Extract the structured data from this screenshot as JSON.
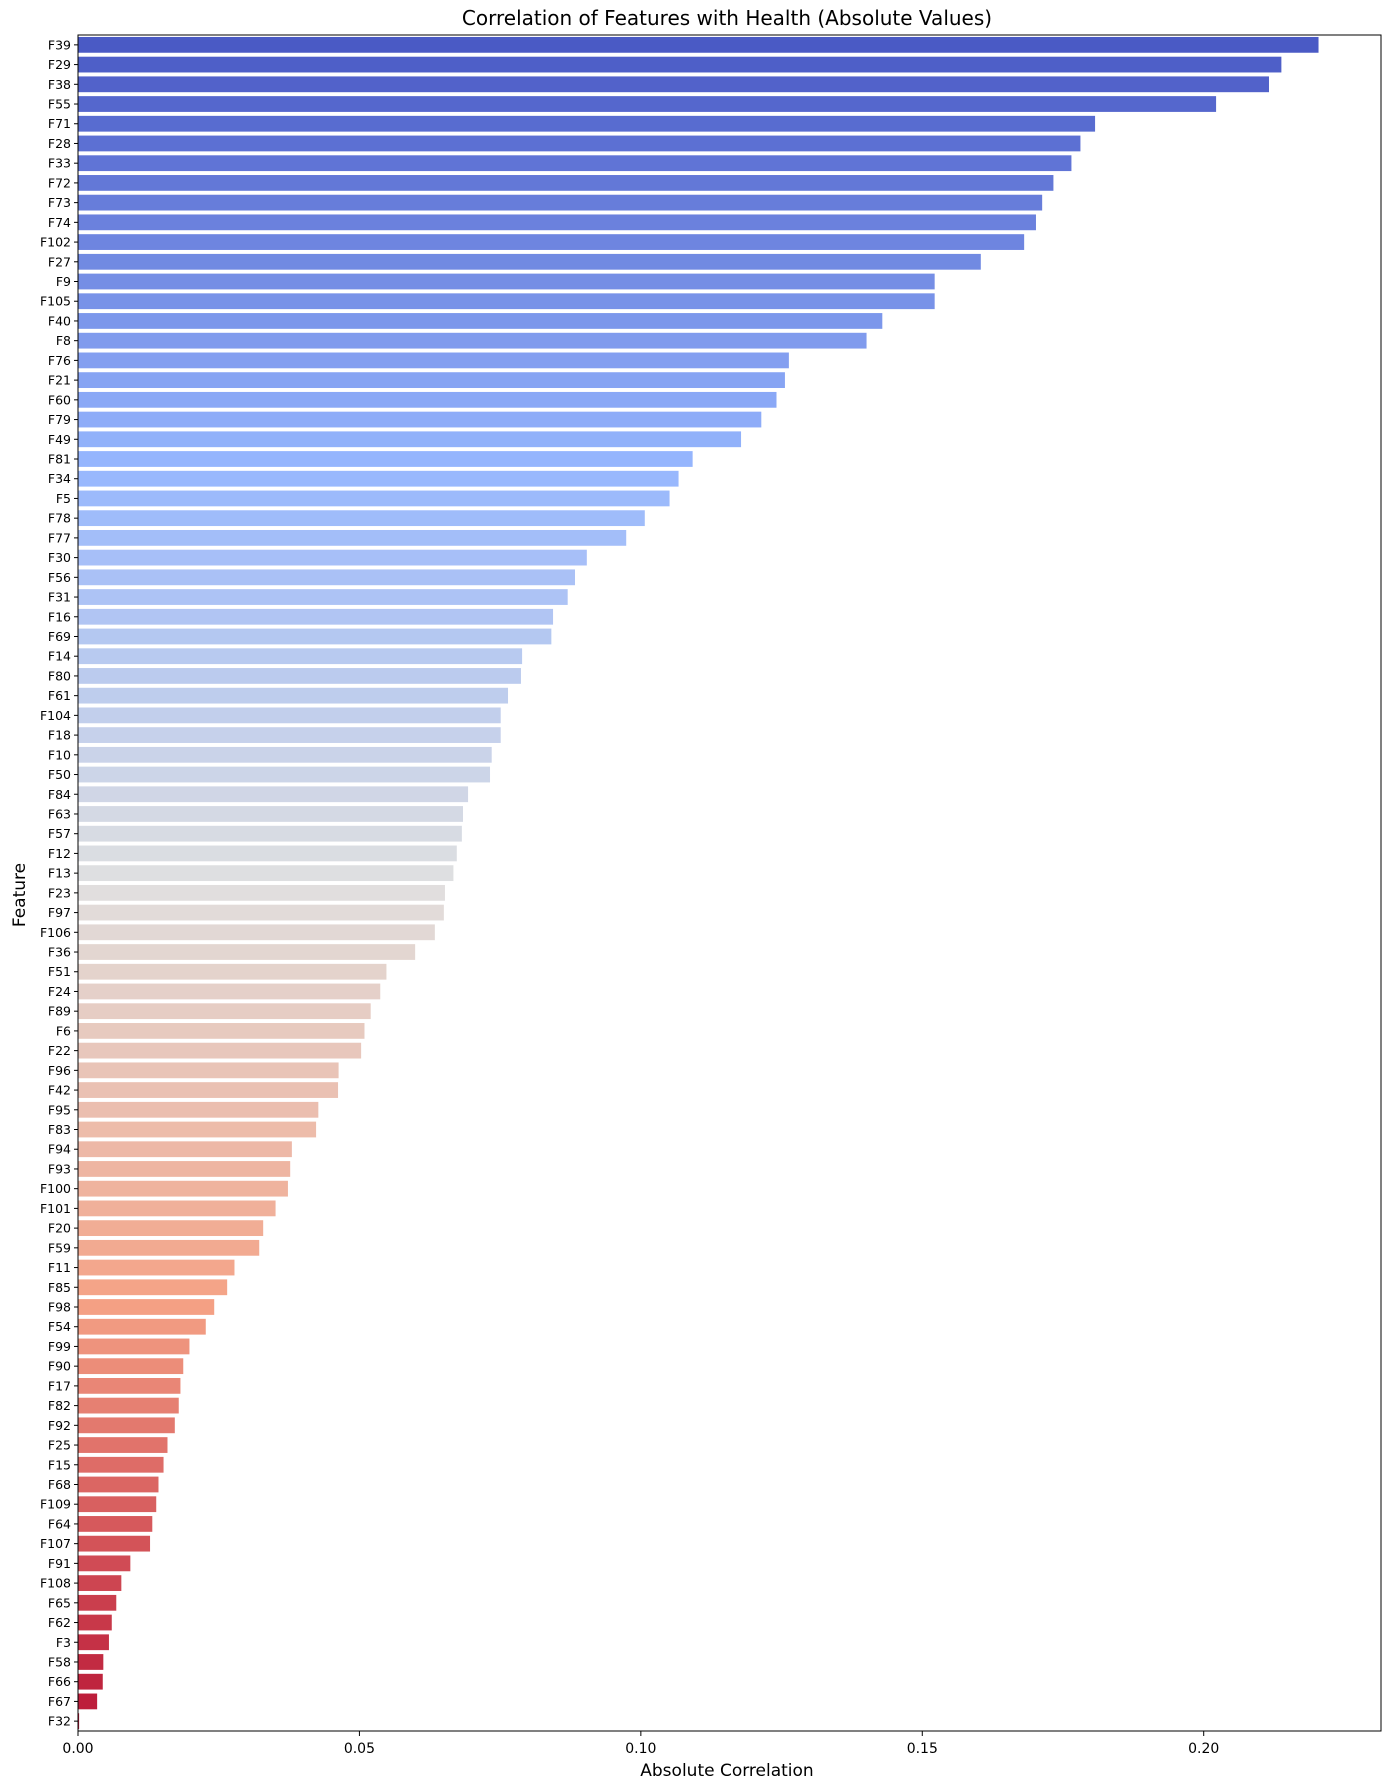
{
  "chart_data": {
    "type": "bar",
    "orientation": "horizontal",
    "title": "Correlation of Features with Health (Absolute Values)",
    "xlabel": "Absolute Correlation",
    "ylabel": "Feature",
    "xlim": [
      0,
      0.2315
    ],
    "xticks": [
      0.0,
      0.05,
      0.1,
      0.15,
      0.2
    ],
    "xtick_labels": [
      "0.00",
      "0.05",
      "0.10",
      "0.15",
      "0.20"
    ],
    "grid": false,
    "palette": "coolwarm",
    "categories": [
      "F39",
      "F29",
      "F38",
      "F55",
      "F71",
      "F28",
      "F33",
      "F72",
      "F73",
      "F74",
      "F102",
      "F27",
      "F9",
      "F105",
      "F40",
      "F8",
      "F76",
      "F21",
      "F60",
      "F79",
      "F49",
      "F81",
      "F34",
      "F5",
      "F78",
      "F77",
      "F30",
      "F56",
      "F31",
      "F16",
      "F69",
      "F14",
      "F80",
      "F61",
      "F104",
      "F18",
      "F10",
      "F50",
      "F84",
      "F63",
      "F57",
      "F12",
      "F13",
      "F23",
      "F97",
      "F106",
      "F36",
      "F51",
      "F24",
      "F89",
      "F6",
      "F22",
      "F96",
      "F42",
      "F95",
      "F83",
      "F94",
      "F93",
      "F100",
      "F101",
      "F20",
      "F59",
      "F11",
      "F85",
      "F98",
      "F54",
      "F99",
      "F90",
      "F17",
      "F82",
      "F92",
      "F25",
      "F15",
      "F68",
      "F109",
      "F64",
      "F107",
      "F91",
      "F108",
      "F65",
      "F62",
      "F3",
      "F58",
      "F66",
      "F67",
      "F32"
    ],
    "values": [
      0.2204,
      0.2138,
      0.2116,
      0.2022,
      0.1807,
      0.1781,
      0.1765,
      0.1733,
      0.1713,
      0.1702,
      0.1681,
      0.1604,
      0.1522,
      0.1522,
      0.1429,
      0.1401,
      0.1263,
      0.1256,
      0.1241,
      0.1214,
      0.1178,
      0.1092,
      0.1067,
      0.1051,
      0.1007,
      0.0974,
      0.0904,
      0.0883,
      0.087,
      0.0844,
      0.0841,
      0.0789,
      0.0787,
      0.0764,
      0.0751,
      0.0751,
      0.0735,
      0.0732,
      0.0693,
      0.0684,
      0.0682,
      0.0673,
      0.0667,
      0.0652,
      0.065,
      0.0634,
      0.0599,
      0.0548,
      0.0537,
      0.052,
      0.0509,
      0.0503,
      0.0463,
      0.0462,
      0.0427,
      0.0423,
      0.038,
      0.0377,
      0.0373,
      0.0351,
      0.0329,
      0.0322,
      0.0278,
      0.0265,
      0.0242,
      0.0227,
      0.0198,
      0.0187,
      0.0182,
      0.0179,
      0.0172,
      0.0159,
      0.0152,
      0.0143,
      0.0139,
      0.0132,
      0.0128,
      0.0093,
      0.0077,
      0.0068,
      0.006,
      0.0055,
      0.0045,
      0.0044,
      0.0034,
      0.0002
    ]
  }
}
